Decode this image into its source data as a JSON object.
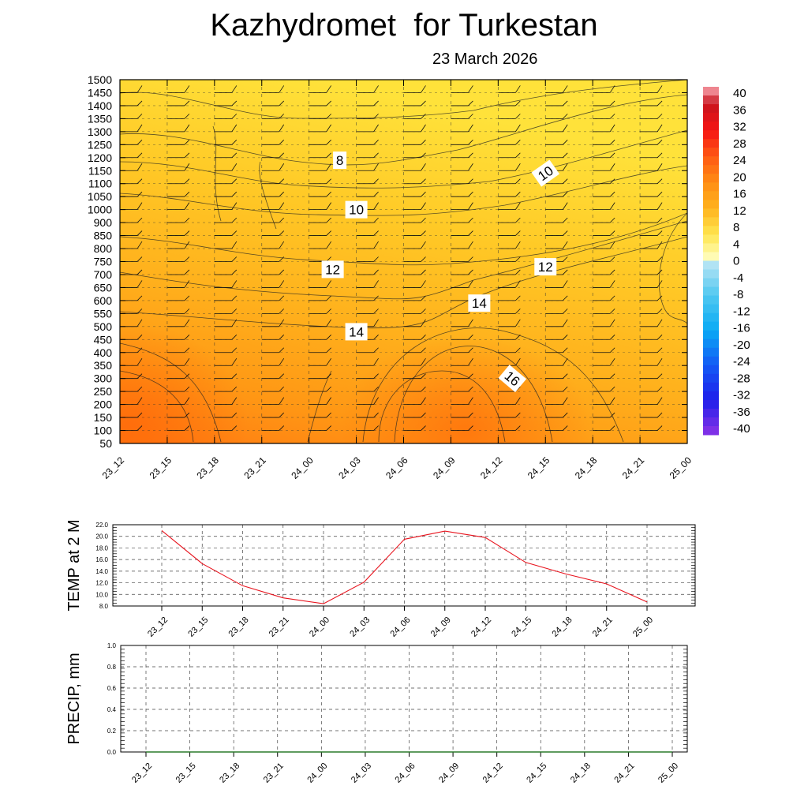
{
  "title": "Kazhydromet  for Turkestan",
  "subtitle": "23 March 2026",
  "time_labels": [
    "23_12",
    "23_15",
    "23_18",
    "23_21",
    "24_00",
    "24_03",
    "24_06",
    "24_09",
    "24_12",
    "24_15",
    "24_18",
    "24_21",
    "25_00"
  ],
  "chart_data": [
    {
      "type": "heatmap",
      "name": "vertical-cross-section",
      "description_label": "Temperature by height with wind barbs",
      "x": [
        "23_12",
        "23_15",
        "23_18",
        "23_21",
        "24_00",
        "24_03",
        "24_06",
        "24_09",
        "24_12",
        "24_15",
        "24_18",
        "24_21",
        "25_00"
      ],
      "y_levels": [
        50,
        100,
        150,
        200,
        250,
        300,
        350,
        400,
        450,
        500,
        550,
        600,
        650,
        700,
        750,
        800,
        850,
        900,
        1000,
        1050,
        1100,
        1150,
        1200,
        1250,
        1300,
        1350,
        1400,
        1450,
        1500
      ],
      "ylim": [
        50,
        1500
      ],
      "colorbar": {
        "ticks": [
          "40",
          "36",
          "32",
          "28",
          "24",
          "20",
          "16",
          "12",
          "8",
          "4",
          "0",
          "-4",
          "-8",
          "-12",
          "-16",
          "-20",
          "-24",
          "-28",
          "-32",
          "-36",
          "-40"
        ],
        "range": [
          -40,
          40
        ]
      },
      "contour_labels": [
        {
          "text": "8",
          "t": 4.65,
          "level": 1190
        },
        {
          "text": "10",
          "t": 5.0,
          "level": 1000
        },
        {
          "text": "12",
          "t": 4.5,
          "level": 720
        },
        {
          "text": "14",
          "t": 5.0,
          "level": 480
        },
        {
          "text": "10",
          "t": 9.0,
          "level": 1140
        },
        {
          "text": "12",
          "t": 9.0,
          "level": 730
        },
        {
          "text": "14",
          "t": 7.6,
          "level": 590
        },
        {
          "text": "16",
          "t": 8.3,
          "level": 300
        }
      ]
    },
    {
      "type": "line",
      "name": "temperature-2m",
      "ylabel": "TEMP at 2 M",
      "x": [
        "23_12",
        "23_15",
        "23_18",
        "23_21",
        "24_00",
        "24_03",
        "24_06",
        "24_09",
        "24_12",
        "24_15",
        "24_18",
        "24_21",
        "25_00"
      ],
      "values": [
        21.0,
        15.3,
        11.5,
        9.4,
        8.4,
        12.1,
        19.5,
        20.9,
        19.8,
        15.5,
        13.5,
        11.8,
        8.7
      ],
      "ylim": [
        8.0,
        22.0
      ],
      "yticks": [
        "8.0",
        "10.0",
        "12.0",
        "14.0",
        "16.0",
        "18.0",
        "20.0",
        "22.0"
      ],
      "line_color": "#e8141e",
      "grid": true
    },
    {
      "type": "line",
      "name": "precipitation",
      "ylabel": "PRECIP, mm",
      "x": [
        "23_12",
        "23_15",
        "23_18",
        "23_21",
        "24_00",
        "24_03",
        "24_06",
        "24_09",
        "24_12",
        "24_15",
        "24_18",
        "24_21",
        "25_00"
      ],
      "values": [
        0,
        0,
        0,
        0,
        0,
        0,
        0,
        0,
        0,
        0,
        0,
        0,
        0
      ],
      "ylim": [
        0.0,
        1.0
      ],
      "yticks": [
        "0.0",
        "0.2",
        "0.4",
        "0.6",
        "0.8",
        "1.0"
      ],
      "line_color": "#2a7a2a",
      "grid": true
    }
  ]
}
